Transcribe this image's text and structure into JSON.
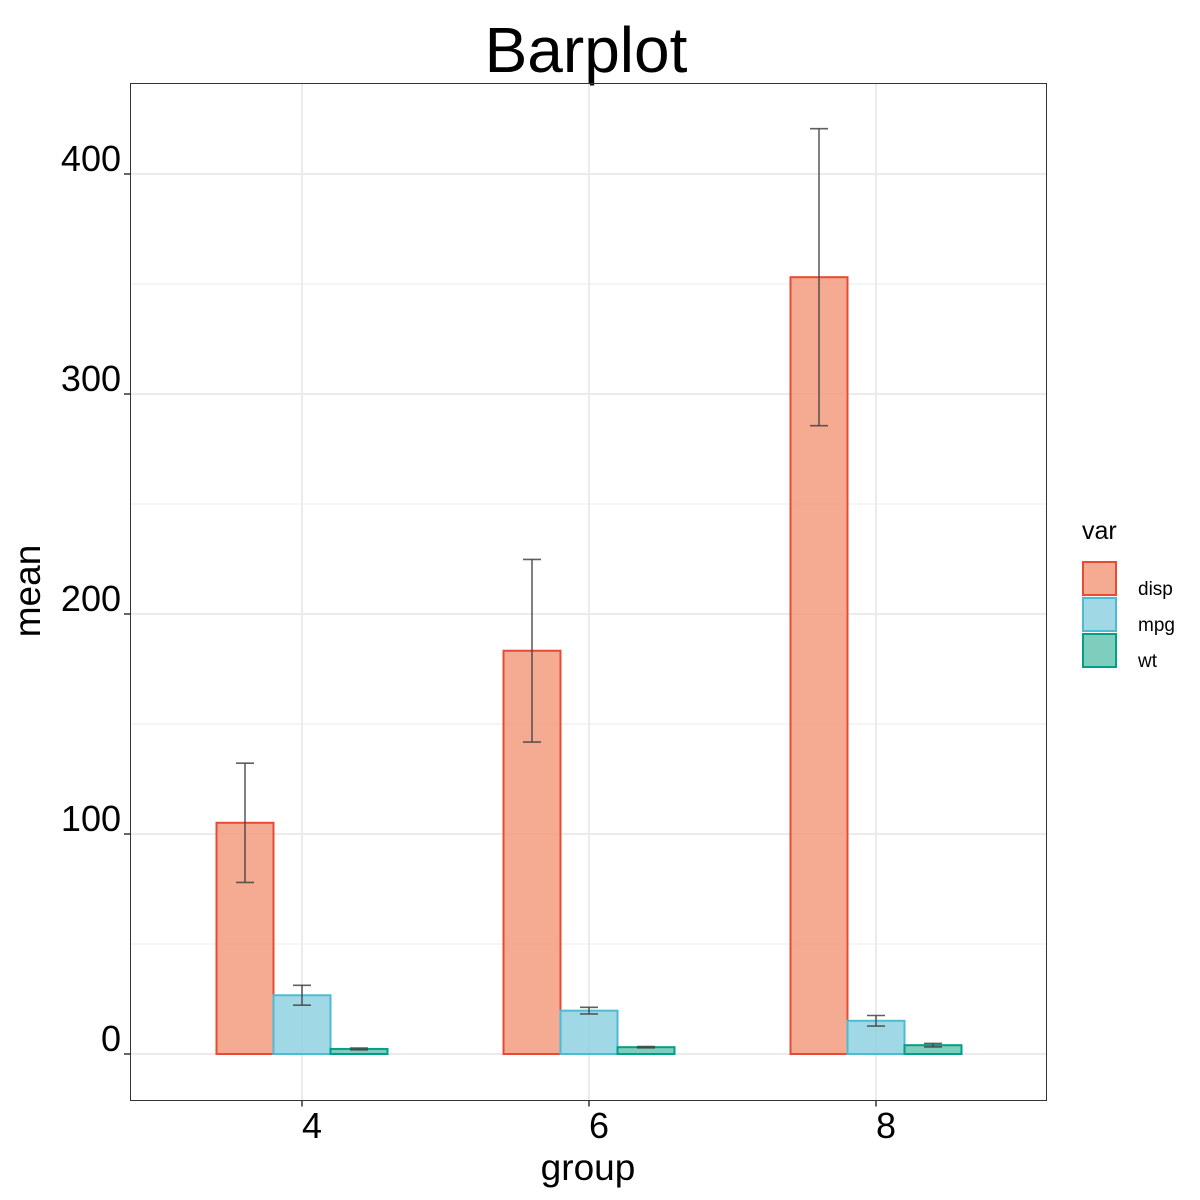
{
  "chart_data": {
    "type": "bar",
    "title": "Barplot",
    "xlabel": "group",
    "ylabel": "mean",
    "categories": [
      "4",
      "6",
      "8"
    ],
    "ylim": [
      -20,
      443
    ],
    "yticks": [
      0,
      100,
      200,
      300,
      400
    ],
    "yticklabels": [
      "0",
      "100",
      "200",
      "300",
      "400"
    ],
    "grid": true,
    "legend": {
      "title": "var",
      "position": "right"
    },
    "series": [
      {
        "name": "disp",
        "color": "#E64B35",
        "fill": "#F39B7F",
        "values": [
          105.1,
          183.3,
          353.1
        ],
        "err_low": [
          78.0,
          141.8,
          285.6
        ],
        "err_high": [
          132.2,
          224.8,
          420.6
        ]
      },
      {
        "name": "mpg",
        "color": "#4DBBD5",
        "fill": "#91D1E2",
        "values": [
          26.7,
          19.7,
          15.1
        ],
        "err_low": [
          22.2,
          18.2,
          12.7
        ],
        "err_high": [
          31.2,
          21.2,
          17.5
        ]
      },
      {
        "name": "wt",
        "color": "#00A087",
        "fill": "#68C4B0",
        "values": [
          2.3,
          3.1,
          4.0
        ],
        "err_low": [
          1.9,
          2.8,
          3.2
        ],
        "err_high": [
          2.7,
          3.4,
          4.8
        ]
      }
    ]
  }
}
